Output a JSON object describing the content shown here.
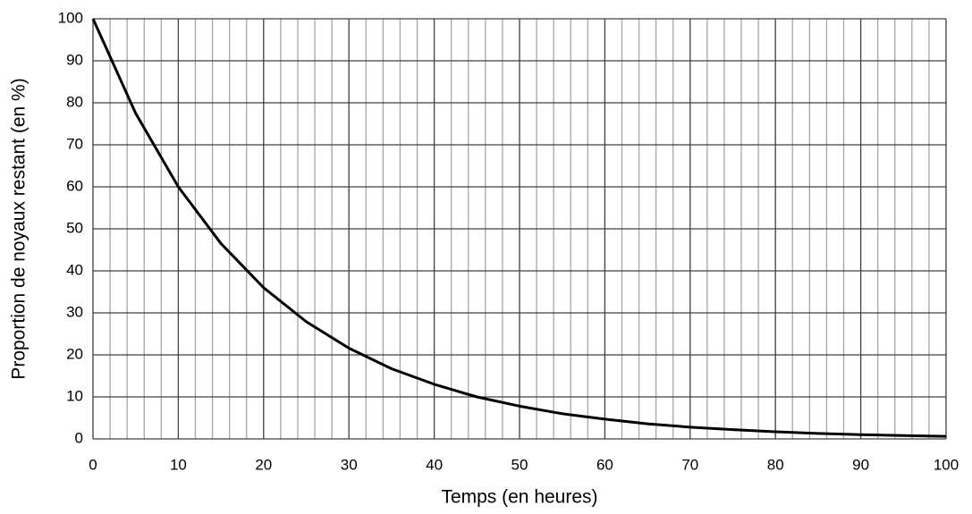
{
  "chart_data": {
    "type": "line",
    "x_label": "Temps (en heures)",
    "y_label": "Proportion de noyaux restant (en %)",
    "series": [
      {
        "name": "Proportion",
        "color": "#000000",
        "x": [
          0,
          5,
          10,
          15,
          20,
          25,
          30,
          35,
          40,
          45,
          50,
          55,
          60,
          65,
          70,
          75,
          80,
          85,
          90,
          95,
          100
        ],
        "values": [
          100,
          77.5,
          60,
          46.5,
          36,
          27.9,
          21.6,
          16.7,
          13,
          10,
          7.8,
          6,
          4.7,
          3.6,
          2.8,
          2.2,
          1.7,
          1.3,
          1,
          0.8,
          0.6
        ]
      }
    ],
    "xlim": [
      0,
      100
    ],
    "xticks": [
      0,
      10,
      20,
      30,
      40,
      50,
      60,
      70,
      80,
      90,
      100
    ],
    "xminor_ticks": [
      2,
      4,
      6,
      8,
      12,
      14,
      16,
      18,
      22,
      24,
      26,
      28,
      32,
      34,
      36,
      38,
      42,
      44,
      46,
      48,
      52,
      54,
      56,
      58,
      62,
      64,
      66,
      68,
      72,
      74,
      76,
      78,
      82,
      84,
      86,
      88,
      92,
      94,
      96,
      98
    ],
    "ylim": [
      0,
      100
    ],
    "yticks": [
      0,
      10,
      20,
      30,
      40,
      50,
      60,
      70,
      80,
      90,
      100
    ],
    "grid": true
  }
}
